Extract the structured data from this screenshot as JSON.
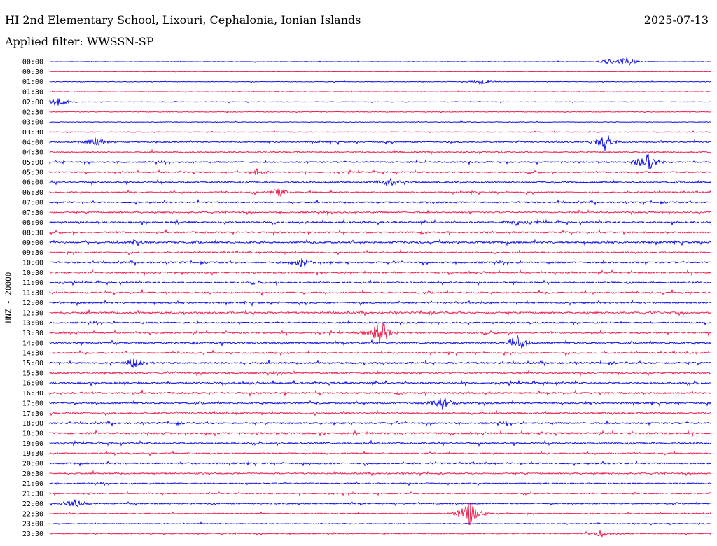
{
  "header": {
    "station": "HI 2nd Elementary School, Lixouri, Cephalonia, Ionian Islands",
    "date": "2025-07-13",
    "filter": "Applied filter: WWSSN-SP"
  },
  "channel_label": "HNZ - 20000",
  "chart_data": {
    "type": "line",
    "title": "HI 2nd Elementary School, Lixouri, Cephalonia, Ionian Islands",
    "subtitle": "Applied filter: WWSSN-SP",
    "ylabel": "HNZ - 20000",
    "y_tick_labels": [
      "00:00",
      "00:30",
      "01:00",
      "01:30",
      "02:00",
      "02:30",
      "03:00",
      "03:30",
      "04:00",
      "04:30",
      "05:00",
      "05:30",
      "06:00",
      "06:30",
      "07:00",
      "07:30",
      "08:00",
      "08:30",
      "09:00",
      "09:30",
      "10:00",
      "10:30",
      "11:00",
      "11:30",
      "12:00",
      "12:30",
      "13:00",
      "13:30",
      "14:00",
      "14:30",
      "15:00",
      "15:30",
      "16:00",
      "16:30",
      "17:00",
      "17:30",
      "18:00",
      "18:30",
      "19:00",
      "19:30",
      "20:00",
      "20:30",
      "21:00",
      "21:30",
      "22:00",
      "22:30",
      "23:00",
      "23:30"
    ],
    "trace_colors": [
      "#0000ee",
      "#ee1144"
    ],
    "grid": false,
    "noise_level": [
      0.4,
      0.3,
      0.5,
      0.5,
      0.5,
      0.6,
      0.5,
      0.7,
      1.0,
      1.0,
      1.1,
      1.1,
      1.2,
      1.1,
      1.2,
      1.1,
      1.4,
      1.3,
      1.4,
      1.2,
      1.3,
      1.3,
      1.2,
      1.3,
      1.3,
      1.4,
      1.2,
      1.3,
      1.3,
      1.2,
      1.4,
      1.3,
      1.3,
      1.4,
      1.3,
      1.3,
      1.3,
      1.4,
      1.2,
      1.1,
      1.2,
      1.1,
      1.0,
      0.9,
      1.0,
      0.8,
      0.7,
      0.8
    ],
    "events": [
      {
        "row": "00:00",
        "minute": 26.2,
        "amplitude": 8
      },
      {
        "row": "00:00",
        "minute": 25.3,
        "amplitude": 4
      },
      {
        "row": "01:00",
        "minute": 19.6,
        "amplitude": 5
      },
      {
        "row": "02:00",
        "minute": 0.4,
        "amplitude": 7
      },
      {
        "row": "04:00",
        "minute": 2.1,
        "amplitude": 9
      },
      {
        "row": "04:00",
        "minute": 25.2,
        "amplitude": 14
      },
      {
        "row": "05:00",
        "minute": 27.1,
        "amplitude": 17
      },
      {
        "row": "05:30",
        "minute": 9.4,
        "amplitude": 5
      },
      {
        "row": "06:00",
        "minute": 15.4,
        "amplitude": 9
      },
      {
        "row": "06:30",
        "minute": 10.4,
        "amplitude": 7
      },
      {
        "row": "08:00",
        "minute": 21.2,
        "amplitude": 6
      },
      {
        "row": "09:00",
        "minute": 4.0,
        "amplitude": 6
      },
      {
        "row": "10:00",
        "minute": 11.4,
        "amplitude": 7
      },
      {
        "row": "13:30",
        "minute": 15.0,
        "amplitude": 20
      },
      {
        "row": "14:00",
        "minute": 21.2,
        "amplitude": 14
      },
      {
        "row": "15:00",
        "minute": 3.8,
        "amplitude": 8
      },
      {
        "row": "17:00",
        "minute": 17.8,
        "amplitude": 11
      },
      {
        "row": "22:00",
        "minute": 1.1,
        "amplitude": 8
      },
      {
        "row": "22:30",
        "minute": 19.0,
        "amplitude": 20
      },
      {
        "row": "23:30",
        "minute": 25.0,
        "amplitude": 6
      }
    ]
  }
}
